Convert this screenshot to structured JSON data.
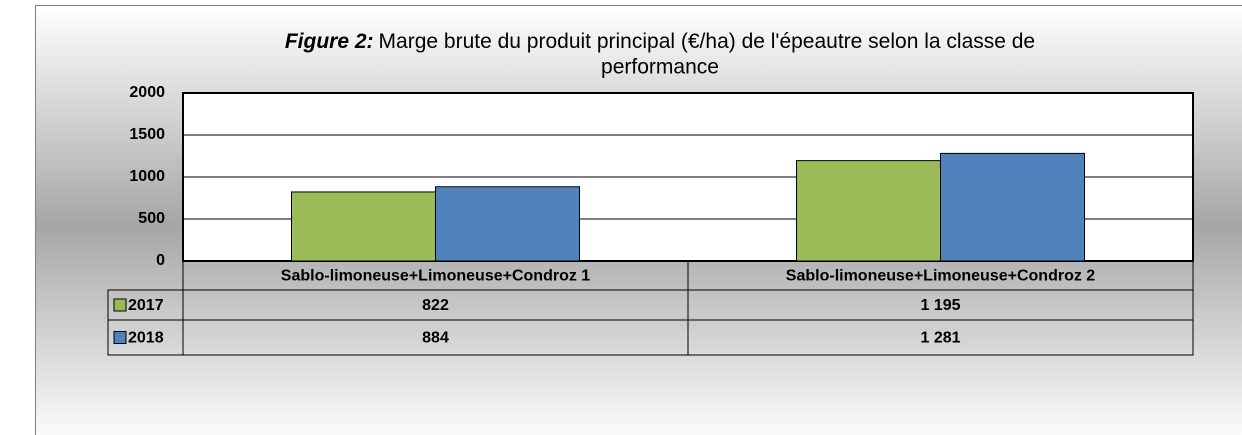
{
  "chart_data": {
    "type": "bar",
    "title_label": "Figure 2:",
    "title": "Marge brute du produit principal (€/ha) de l'épeautre selon la classe de performance",
    "categories": [
      "Sablo-limoneuse+Limoneuse+Condroz 1",
      "Sablo-limoneuse+Limoneuse+Condroz 2"
    ],
    "series": [
      {
        "name": "2017",
        "color": "#9bbb59",
        "values": [
          822,
          1195
        ],
        "value_labels": [
          "822",
          "1 195"
        ]
      },
      {
        "name": "2018",
        "color": "#4f81bd",
        "values": [
          884,
          1281
        ],
        "value_labels": [
          "884",
          "1 281"
        ]
      }
    ],
    "ylim": [
      0,
      2000
    ],
    "yticks": [
      0,
      500,
      1000,
      1500,
      2000
    ],
    "grid": true
  }
}
